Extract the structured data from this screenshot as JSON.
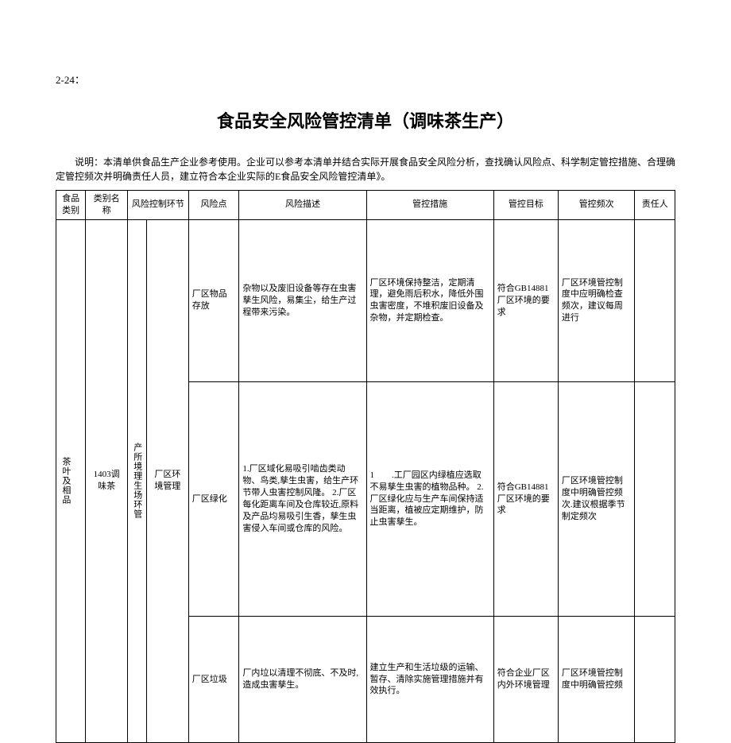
{
  "page_no": "2-24：",
  "title": "食品安全风险管控清单（调味茶生产）",
  "intro": "说明：本清单供食品生产企业参考使用。企业可以参考本清单并结合实际开展食品安全风险分析，查找确认风险点、科学制定管控措施、合理确定管控频次并明确责任人员，建立符合本企业实际的E食品安全风险管控清单》。",
  "headers": {
    "h1": "食品类别",
    "h2": "类别名称",
    "h3": "风险控制环节",
    "h4": "风险点",
    "h5": "风险描述",
    "h6": "管控措施",
    "h7": "管控目标",
    "h8": "管控频次",
    "h9": "责任人"
  },
  "col1": "茶叶及相品",
  "col2": "1403调味茶",
  "col3a": "产所境理生场环管",
  "col3b": "厂区环境管理",
  "rows": [
    {
      "risk_point": "厂区物品存放",
      "risk_desc": "杂物以及废旧设备等存在虫害孳生风险，易集尘，给生产过程带来污染。",
      "measure": "厂区环境保持整洁，定期清理，避免雨后积水，降低外围虫害密度，不堆积废旧设备及杂物，并定期检查。",
      "target": "符合GB14881厂区环境的要求",
      "freq": "厂区环境管控制度中应明确检查频次，建议每周进行"
    },
    {
      "risk_point": "厂区绿化",
      "risk_desc": "1.厂区域化易吸引啮齿类动物、鸟类,孳生虫害，给生产环节带人虫害控制风隆。\n2.厂区每化距离车间及仓库较近,原料及产品均易吸引生香，孳生虫害侵入车间或仓库的风险。",
      "measure": "1　　.工厂园区内绿植应选取不易孳生虫害的植物品种。\n2. 厂区绿化应与生产车间保持适当距离，植被应定期维护，防止虫害孳生。",
      "target": "符合GB14881厂区环境的要求",
      "freq": "厂区环境管控制度中明确管控频次.建议根据季节制定频次"
    },
    {
      "risk_point": "厂区垃圾",
      "risk_desc": "厂内垃以清理不彻底、不及时,造成虫害孳生。",
      "measure": "建立生产和生活垃级的运输、暂存、清除实施管理措施并有效执行。",
      "target": "符合企业厂区内外环境管理",
      "freq": "厂区环境管控制度中明确管控频"
    }
  ]
}
